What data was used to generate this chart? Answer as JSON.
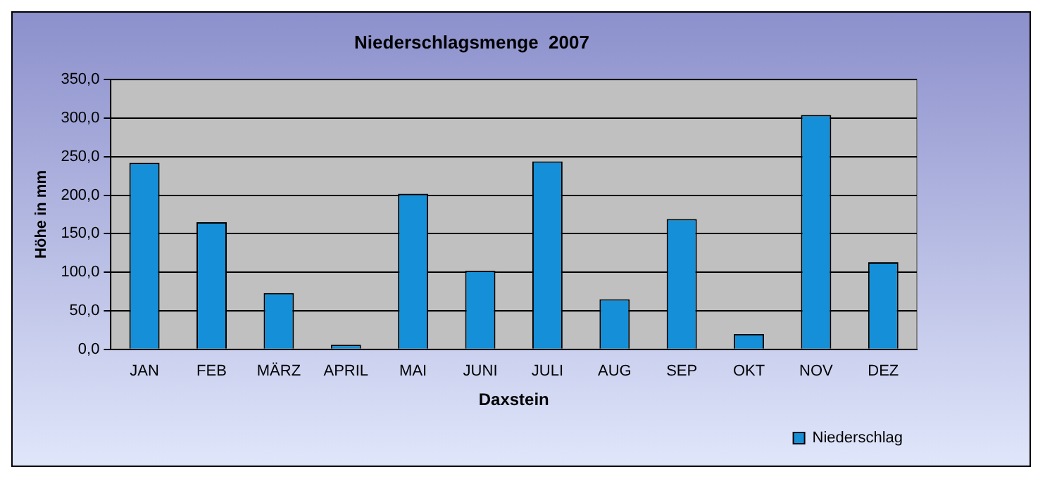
{
  "chart_data": {
    "type": "bar",
    "title": "Niederschlagsmenge  2007",
    "xlabel": "Daxstein",
    "ylabel": "Höhe in mm",
    "categories": [
      "JAN",
      "FEB",
      "MÄRZ",
      "APRIL",
      "MAI",
      "JUNI",
      "JULI",
      "AUG",
      "SEP",
      "OKT",
      "NOV",
      "DEZ"
    ],
    "series": [
      {
        "name": "Niederschlag",
        "color": "#1590d8",
        "values": [
          242,
          165,
          73,
          6,
          202,
          102,
          244,
          65,
          169,
          20,
          304,
          113
        ]
      }
    ],
    "ylim": [
      0,
      350
    ],
    "yticks": [
      {
        "value": 0,
        "label": "0,0"
      },
      {
        "value": 50,
        "label": "50,0"
      },
      {
        "value": 100,
        "label": "100,0"
      },
      {
        "value": 150,
        "label": "150,0"
      },
      {
        "value": 200,
        "label": "200,0"
      },
      {
        "value": 250,
        "label": "250,0"
      },
      {
        "value": 300,
        "label": "300,0"
      },
      {
        "value": 350,
        "label": "350,0"
      }
    ],
    "grid": "y",
    "legend": "bottom right"
  }
}
